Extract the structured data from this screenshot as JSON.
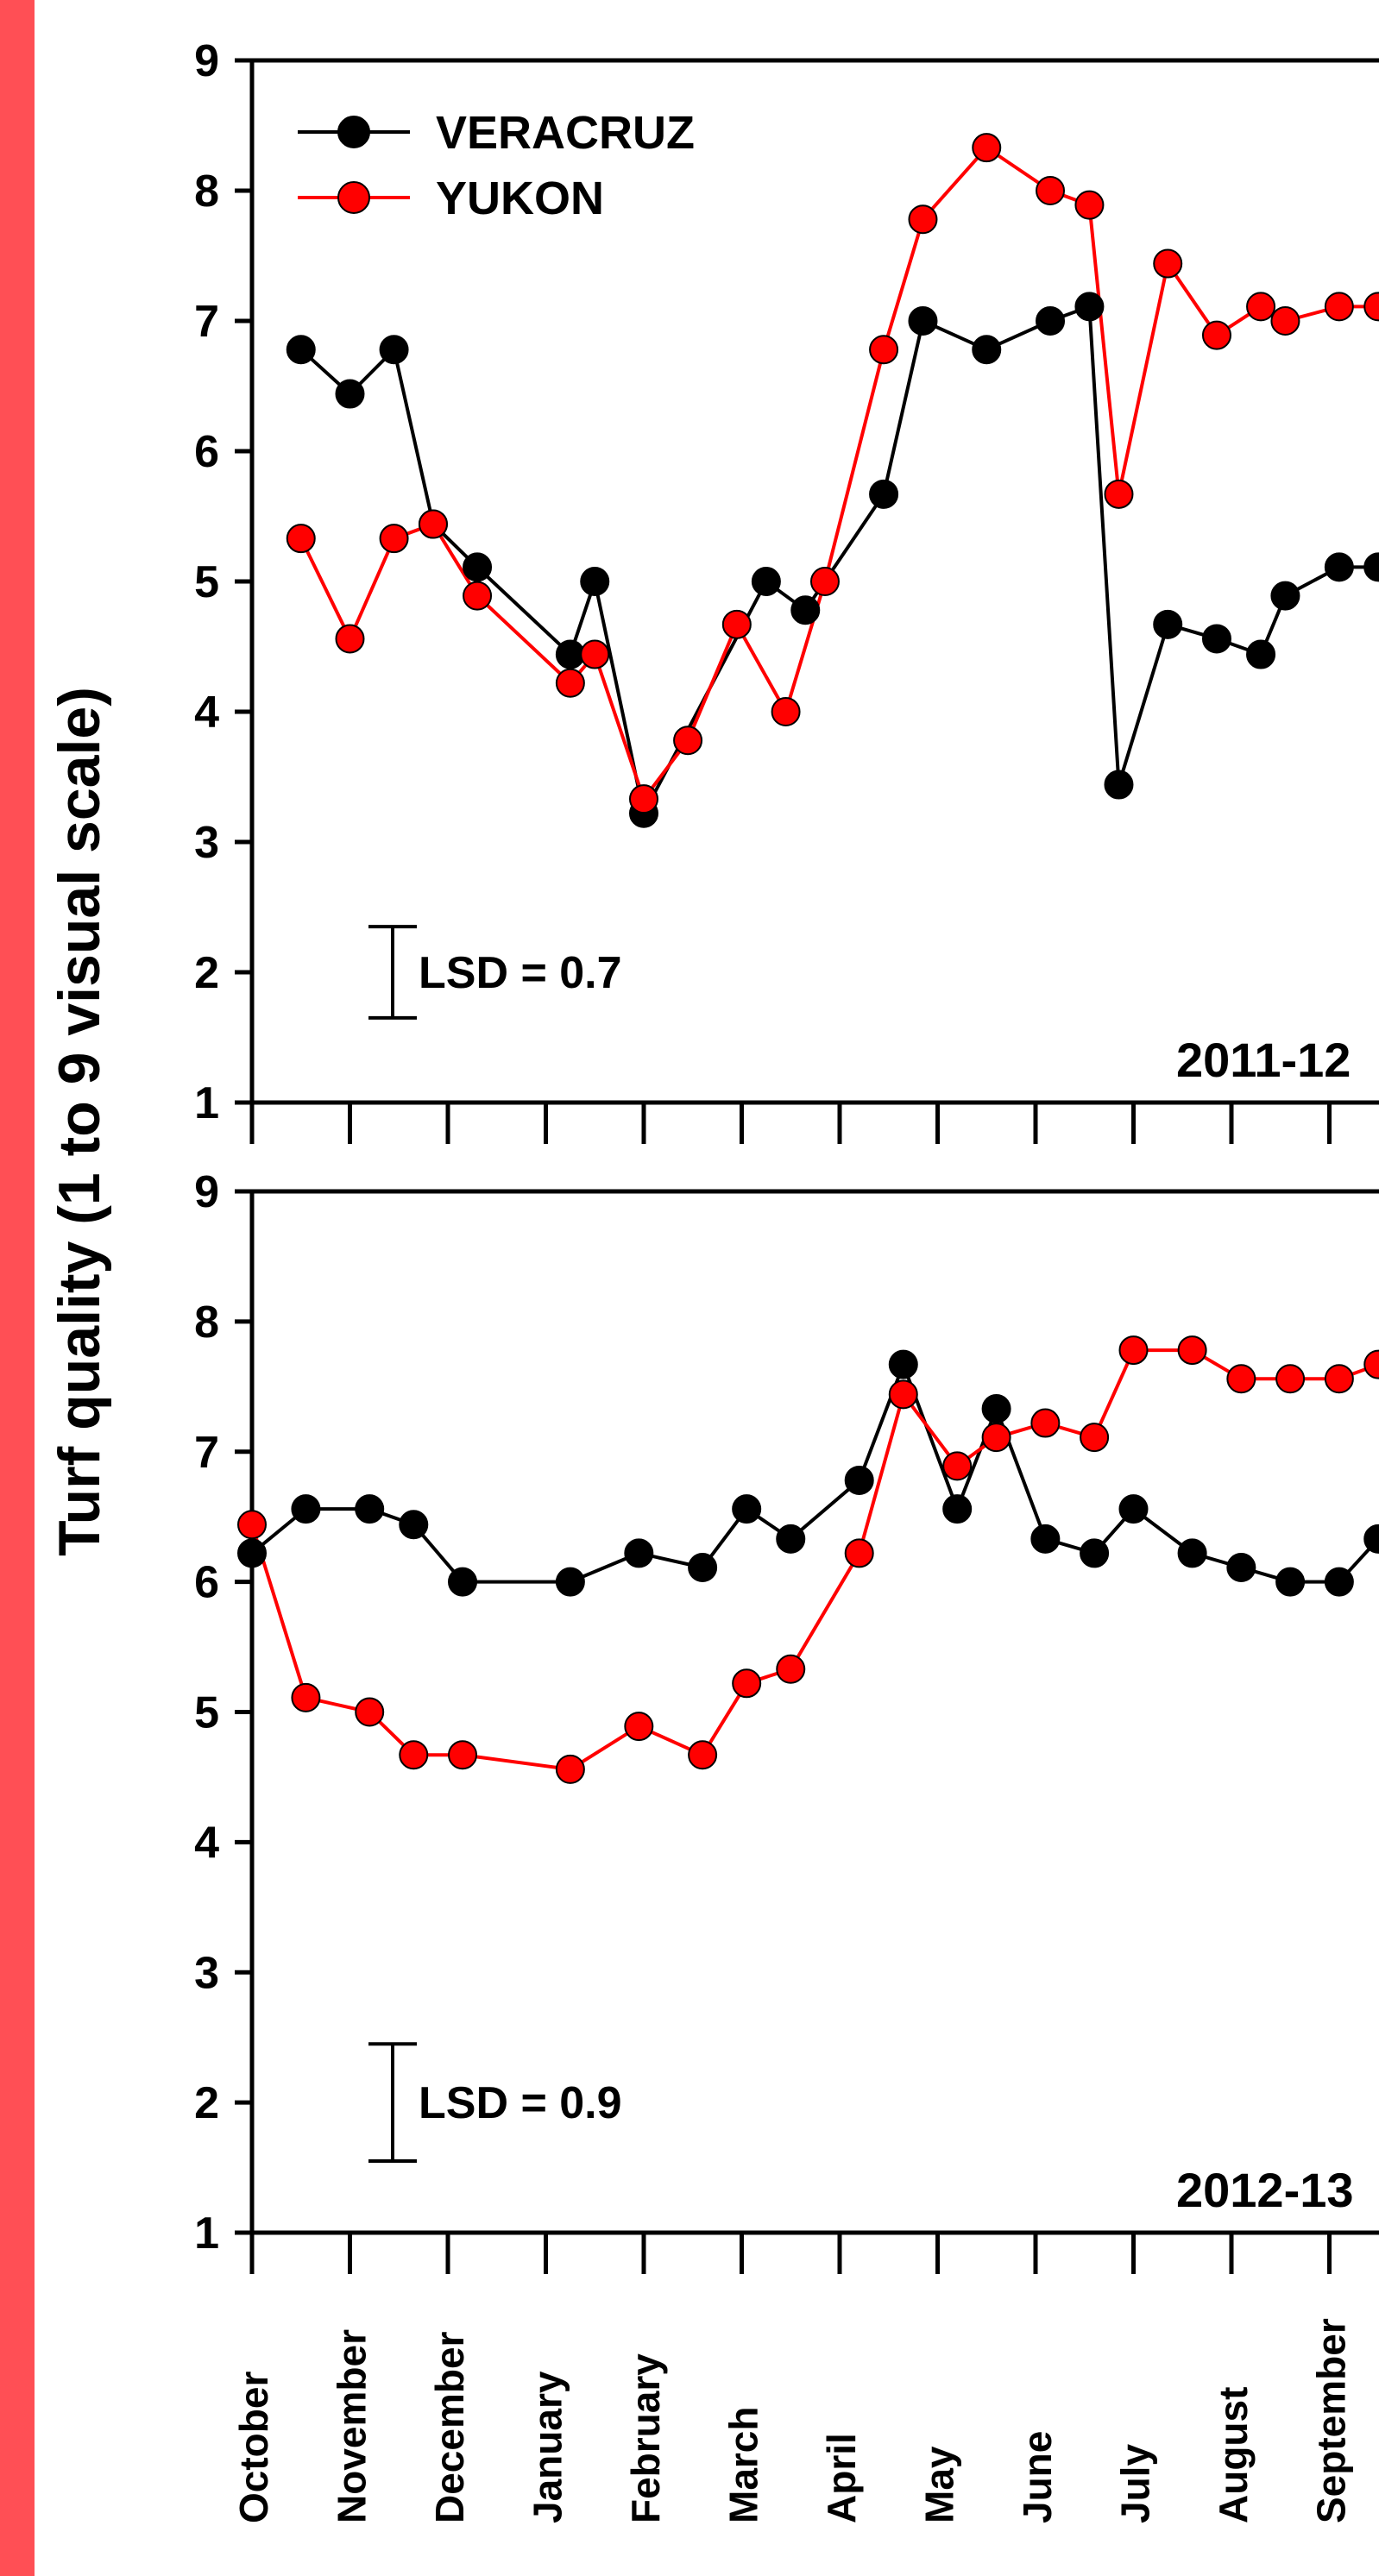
{
  "colors": {
    "left_bar": "#ff4f55",
    "veracruz": "#000000",
    "yukon": "#ff0000",
    "marker_edge": "#000000"
  },
  "chart_data": {
    "type": "line",
    "ylabel": "Turf quality (1 to 9 visual scale)",
    "y_ticks": [
      "1",
      "2",
      "3",
      "4",
      "5",
      "6",
      "7",
      "8",
      "9"
    ],
    "months": [
      "October",
      "November",
      "December",
      "January",
      "February",
      "March",
      "April",
      "May",
      "June",
      "July",
      "August",
      "September"
    ],
    "legend": {
      "placement": "top-left",
      "entries": [
        "VERACRUZ",
        "YUKON"
      ]
    },
    "panels": [
      {
        "season": "2011-12",
        "lsd": "LSD = 0.7",
        "lsd_value": 0.7,
        "ylim": [
          1,
          9
        ],
        "series": [
          {
            "name": "VERACRUZ",
            "x": [
              0.5,
              1.0,
              1.45,
              1.85,
              2.3,
              3.25,
              3.5,
              4.0,
              5.25,
              5.65,
              6.45,
              6.85,
              7.5,
              8.15,
              8.55,
              8.85,
              9.35,
              9.85,
              10.3,
              10.55,
              11.1,
              11.5
            ],
            "y": [
              6.78,
              6.44,
              6.78,
              5.44,
              5.11,
              4.44,
              5.0,
              3.22,
              5.0,
              4.78,
              5.67,
              7.0,
              6.78,
              7.0,
              7.11,
              3.44,
              4.67,
              4.56,
              4.44,
              4.89,
              5.11,
              5.11
            ]
          },
          {
            "name": "YUKON",
            "x": [
              0.5,
              1.0,
              1.45,
              1.85,
              2.3,
              3.25,
              3.5,
              4.0,
              4.45,
              4.95,
              5.45,
              5.85,
              6.45,
              6.85,
              7.5,
              8.15,
              8.55,
              8.85,
              9.35,
              9.85,
              10.3,
              10.55,
              11.1,
              11.5
            ],
            "y": [
              5.33,
              4.56,
              5.33,
              5.44,
              4.89,
              4.22,
              4.44,
              3.33,
              3.78,
              4.67,
              4.0,
              5.0,
              6.78,
              7.78,
              8.33,
              8.0,
              7.89,
              5.67,
              7.44,
              6.89,
              7.11,
              7.0,
              7.11,
              7.11
            ]
          }
        ]
      },
      {
        "season": "2012-13",
        "lsd": "LSD = 0.9",
        "lsd_value": 0.9,
        "ylim": [
          1,
          9
        ],
        "series": [
          {
            "name": "VERACRUZ",
            "x": [
              0.0,
              0.55,
              1.2,
              1.65,
              2.15,
              3.25,
              3.95,
              4.6,
              5.05,
              5.5,
              6.2,
              6.65,
              7.2,
              7.6,
              8.1,
              8.6,
              9.0,
              9.6,
              10.1,
              10.6,
              11.1,
              11.5
            ],
            "y": [
              6.22,
              6.56,
              6.56,
              6.44,
              6.0,
              6.0,
              6.22,
              6.11,
              6.56,
              6.33,
              6.78,
              7.67,
              6.56,
              7.33,
              6.33,
              6.22,
              6.56,
              6.22,
              6.11,
              6.0,
              6.0,
              6.33
            ]
          },
          {
            "name": "YUKON",
            "x": [
              0.0,
              0.55,
              1.2,
              1.65,
              2.15,
              3.25,
              3.95,
              4.6,
              5.05,
              5.5,
              6.2,
              6.65,
              7.2,
              7.6,
              8.1,
              8.6,
              9.0,
              9.6,
              10.1,
              10.6,
              11.1,
              11.5
            ],
            "y": [
              6.44,
              5.11,
              5.0,
              4.67,
              4.67,
              4.56,
              4.89,
              4.67,
              5.22,
              5.33,
              6.22,
              7.44,
              6.89,
              7.11,
              7.22,
              7.11,
              7.78,
              7.78,
              7.56,
              7.56,
              7.56,
              7.67
            ]
          }
        ]
      }
    ]
  }
}
